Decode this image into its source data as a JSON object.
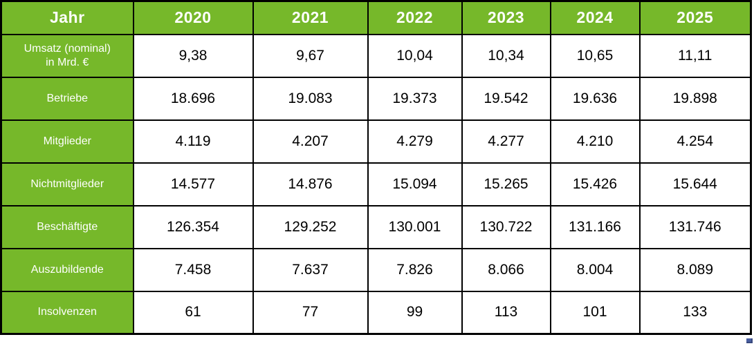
{
  "table": {
    "corner_label": "Jahr",
    "years": [
      "2020",
      "2021",
      "2022",
      "2023",
      "2024",
      "2025"
    ],
    "rows": [
      {
        "label_lines": [
          "Umsatz (nominal)",
          "in Mrd. €"
        ],
        "values": [
          "9,38",
          "9,67",
          "10,04",
          "10,34",
          "10,65",
          "11,11"
        ]
      },
      {
        "label": "Betriebe",
        "values": [
          "18.696",
          "19.083",
          "19.373",
          "19.542",
          "19.636",
          "19.898"
        ]
      },
      {
        "label": "Mitglieder",
        "values": [
          "4.119",
          "4.207",
          "4.279",
          "4.277",
          "4.210",
          "4.254"
        ]
      },
      {
        "label": "Nichtmitglieder",
        "values": [
          "14.577",
          "14.876",
          "15.094",
          "15.265",
          "15.426",
          "15.644"
        ]
      },
      {
        "label": "Beschäftigte",
        "values": [
          "126.354",
          "129.252",
          "130.001",
          "130.722",
          "131.166",
          "131.746"
        ]
      },
      {
        "label": "Auszubildende",
        "values": [
          "7.458",
          "7.637",
          "7.826",
          "8.066",
          "8.004",
          "8.089"
        ]
      },
      {
        "label": "Insolvenzen",
        "values": [
          "61",
          "77",
          "99",
          "113",
          "101",
          "133"
        ]
      }
    ]
  },
  "colors": {
    "header_green": "#76b82a",
    "grid_border": "#000000",
    "cell_background": "#ffffff",
    "header_text": "#ffffff",
    "value_text": "#000000",
    "handle_blue": "#4a5fa0"
  },
  "chart_data": {
    "type": "table",
    "title": "",
    "corner_label": "Jahr",
    "categories": [
      "2020",
      "2021",
      "2022",
      "2023",
      "2024",
      "2025"
    ],
    "series": [
      {
        "name": "Umsatz (nominal) in Mrd. €",
        "values": [
          9.38,
          9.67,
          10.04,
          10.34,
          10.65,
          11.11
        ]
      },
      {
        "name": "Betriebe",
        "values": [
          18696,
          19083,
          19373,
          19542,
          19636,
          19898
        ]
      },
      {
        "name": "Mitglieder",
        "values": [
          4119,
          4207,
          4279,
          4277,
          4210,
          4254
        ]
      },
      {
        "name": "Nichtmitglieder",
        "values": [
          14577,
          14876,
          15094,
          15265,
          15426,
          15644
        ]
      },
      {
        "name": "Beschäftigte",
        "values": [
          126354,
          129252,
          130001,
          130722,
          131166,
          131746
        ]
      },
      {
        "name": "Auszubildende",
        "values": [
          7458,
          7637,
          7826,
          8066,
          8004,
          8089
        ]
      },
      {
        "name": "Insolvenzen",
        "values": [
          61,
          77,
          99,
          113,
          101,
          133
        ]
      }
    ]
  }
}
